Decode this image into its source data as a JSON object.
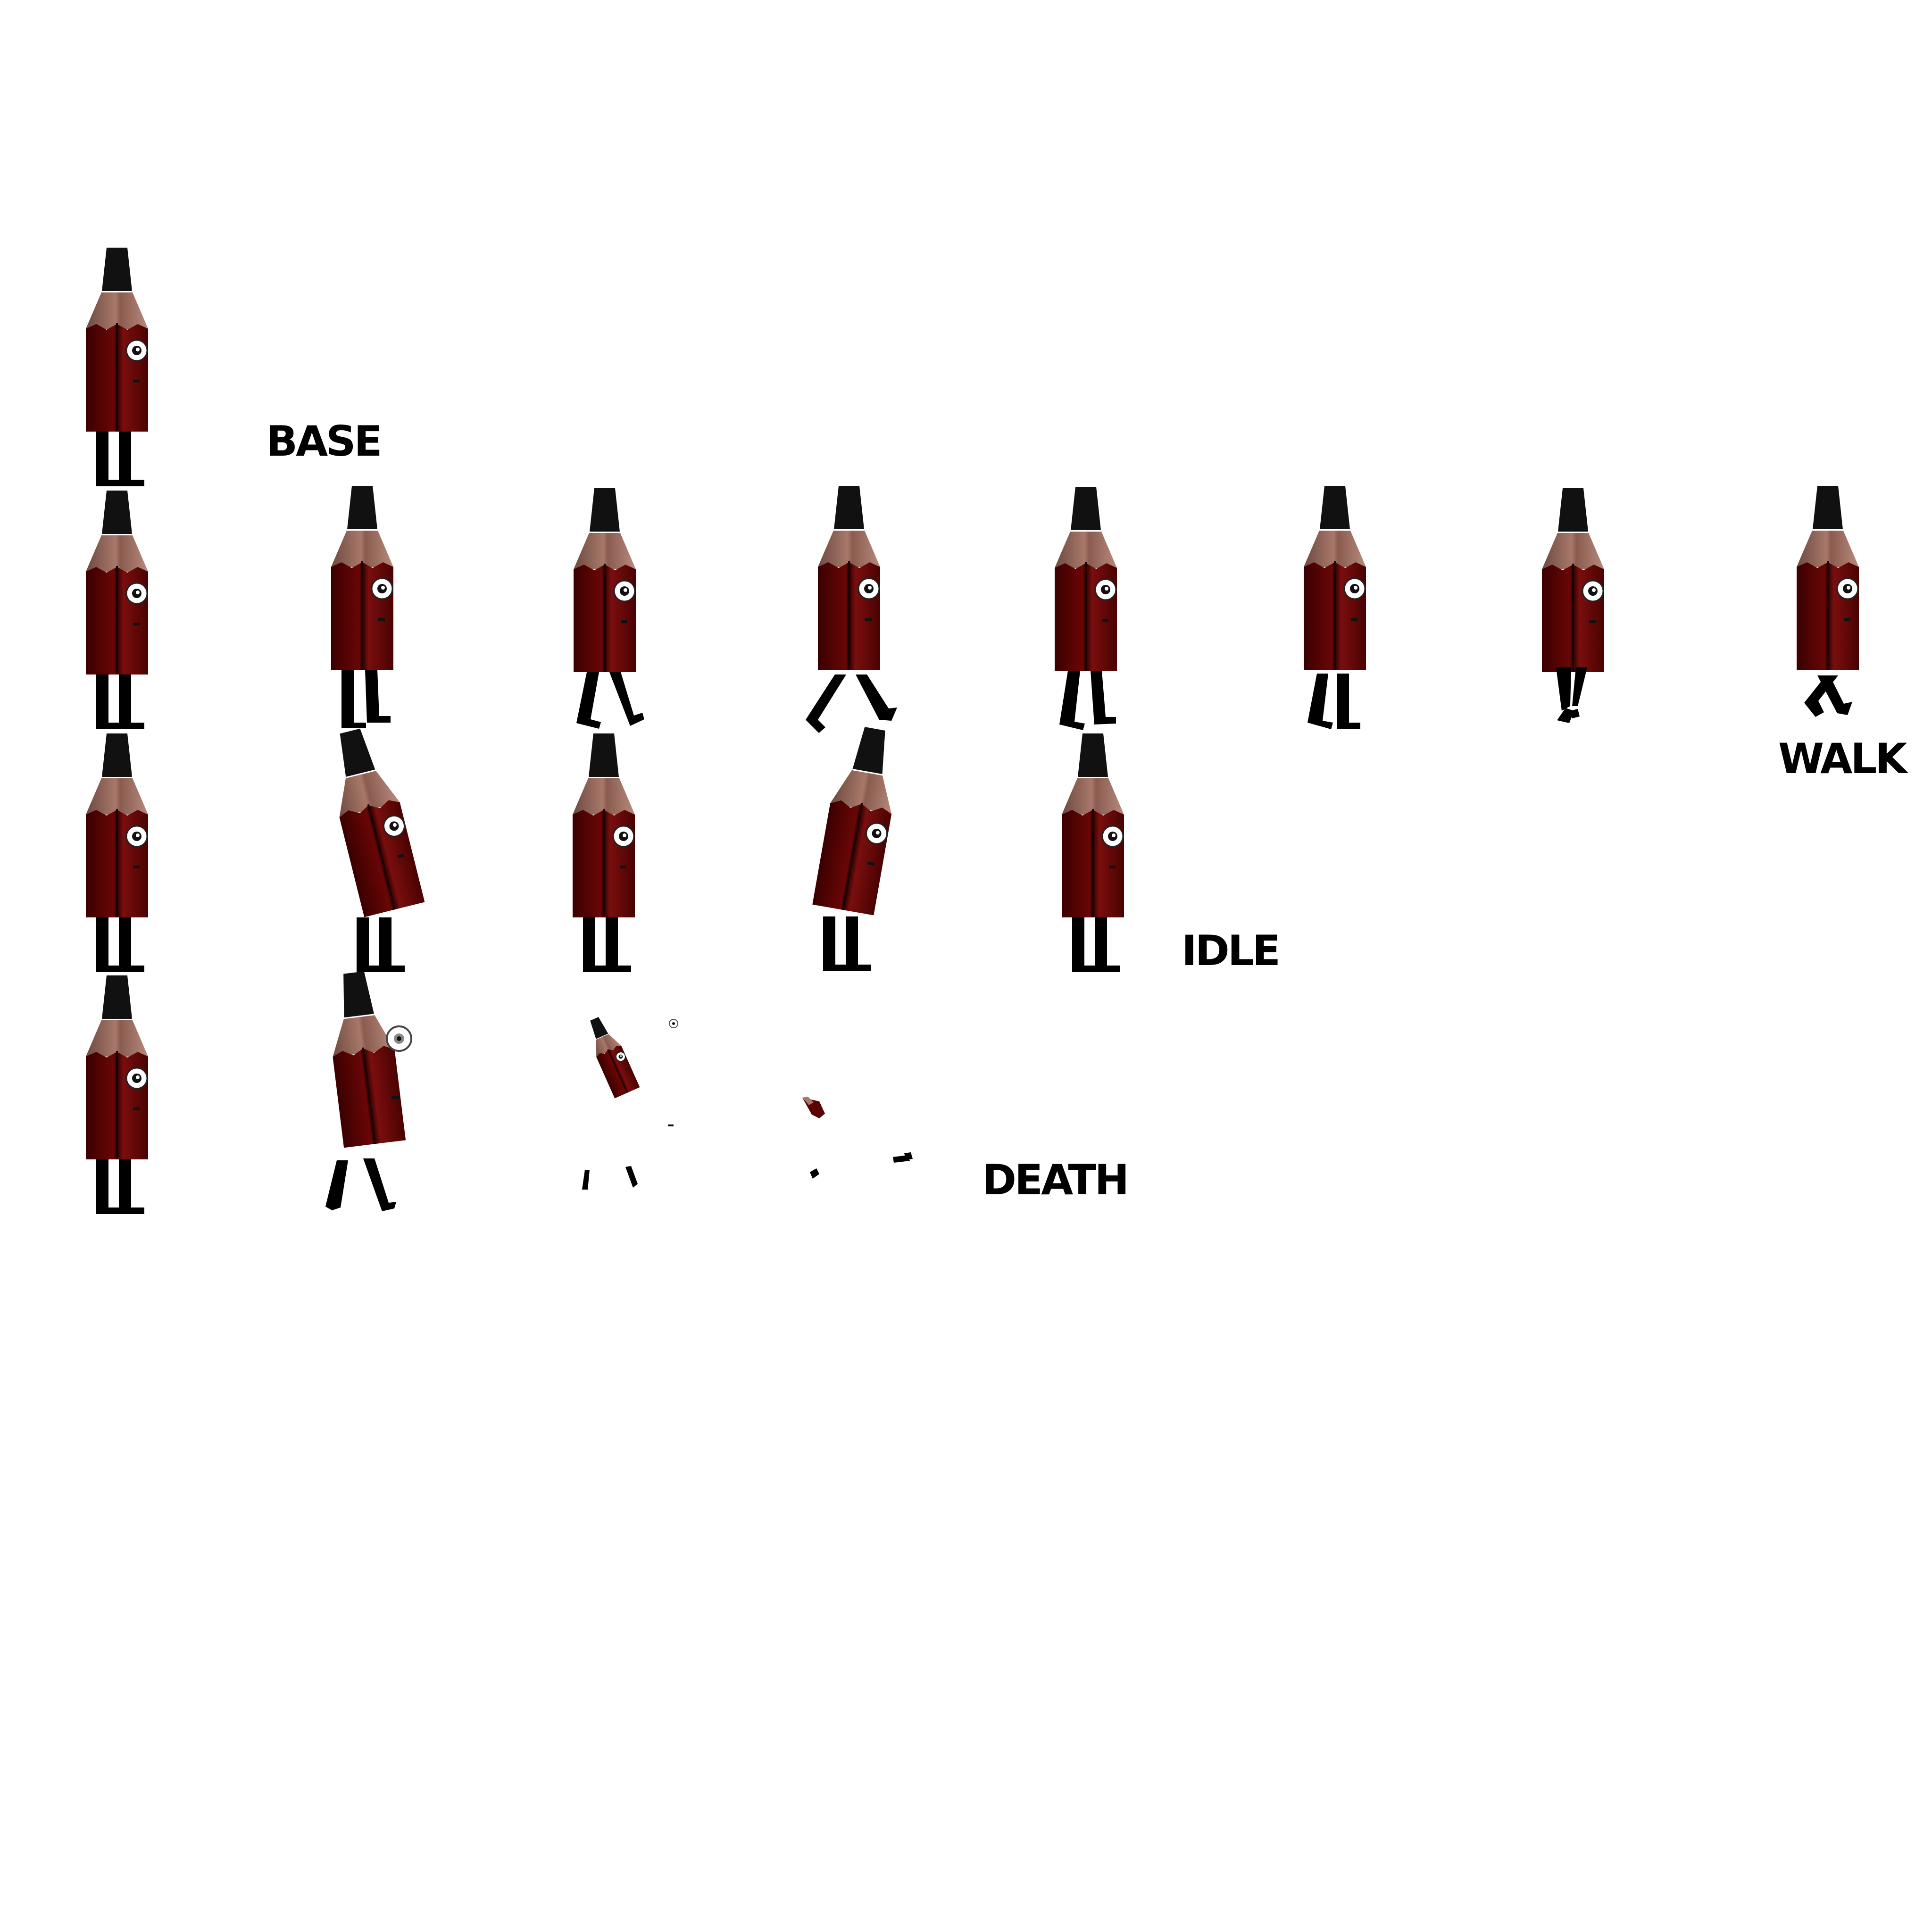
{
  "sprite_sheet": {
    "rows": [
      {
        "id": "base",
        "label": "BASE",
        "frame_count": 1
      },
      {
        "id": "walk",
        "label": "WALK",
        "frame_count": 8
      },
      {
        "id": "idle",
        "label": "IDLE",
        "frame_count": 5
      },
      {
        "id": "death",
        "label": "DEATH",
        "frame_count": 4
      }
    ]
  },
  "character": {
    "name": "pencil-character",
    "colors": {
      "body": "#5a0303",
      "body_shadow": "#2a0000",
      "body_highlight": "#8a1a1a",
      "wood": "#a8786a",
      "wood_shadow": "#6e4a40",
      "graphite": "#111111",
      "legs": "#000000",
      "eye_white": "#ffffff",
      "pupil": "#111111",
      "background": "#ffffff"
    }
  }
}
